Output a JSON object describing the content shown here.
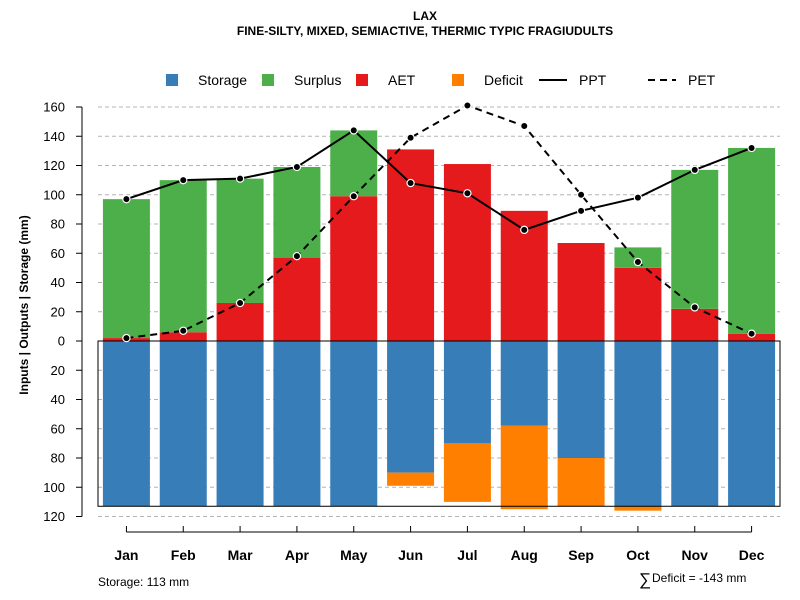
{
  "chart_data": {
    "type": "bar",
    "title": "LAX",
    "subtitle": "FINE-SILTY, MIXED, SEMIACTIVE, THERMIC TYPIC FRAGIUDULTS",
    "ylabel": "Inputs | Outputs | Storage    (mm)",
    "categories": [
      "Jan",
      "Feb",
      "Mar",
      "Apr",
      "May",
      "Jun",
      "Jul",
      "Aug",
      "Sep",
      "Oct",
      "Nov",
      "Dec"
    ],
    "ylim": [
      -120,
      160
    ],
    "yticks": [
      160,
      140,
      120,
      100,
      80,
      60,
      40,
      20,
      0,
      -20,
      -40,
      -60,
      -80,
      -100,
      -120
    ],
    "ytick_labels": [
      "160",
      "140",
      "120",
      "100",
      "80",
      "60",
      "40",
      "20",
      "0",
      "20",
      "40",
      "60",
      "80",
      "100",
      "120"
    ],
    "grid": true,
    "legend_position": "top",
    "colors": {
      "storage": "#377eb8",
      "surplus": "#4daf4a",
      "aet": "#e41a1c",
      "deficit": "#ff7f00",
      "ppt": "#000000",
      "pet": "#000000"
    },
    "legend": [
      {
        "key": "storage",
        "label": "Storage",
        "kind": "box"
      },
      {
        "key": "surplus",
        "label": "Surplus",
        "kind": "box"
      },
      {
        "key": "aet",
        "label": "AET",
        "kind": "box"
      },
      {
        "key": "deficit",
        "label": "Deficit",
        "kind": "box"
      },
      {
        "key": "ppt",
        "label": "PPT",
        "kind": "solid"
      },
      {
        "key": "pet",
        "label": "PET",
        "kind": "dashed"
      }
    ],
    "series": [
      {
        "name": "AET",
        "key": "aet",
        "values": [
          2,
          6,
          26,
          57,
          99,
          131,
          121,
          89,
          67,
          50,
          22,
          5
        ]
      },
      {
        "name": "Surplus",
        "key": "surplus",
        "values": [
          95,
          104,
          85,
          62,
          45,
          0,
          0,
          0,
          0,
          14,
          95,
          127
        ]
      },
      {
        "name": "Storage",
        "key": "storage",
        "values": [
          113,
          113,
          113,
          113,
          113,
          90,
          70,
          58,
          80,
          113,
          113,
          113
        ]
      },
      {
        "name": "Deficit",
        "key": "deficit",
        "values": [
          0,
          0,
          0,
          0,
          0,
          9,
          40,
          57,
          33,
          3,
          0,
          0
        ]
      },
      {
        "name": "PPT",
        "key": "ppt",
        "values": [
          97,
          110,
          111,
          119,
          144,
          108,
          101,
          76,
          89,
          98,
          117,
          132
        ]
      },
      {
        "name": "PET",
        "key": "pet",
        "values": [
          2,
          7,
          26,
          58,
          99,
          139,
          161,
          147,
          100,
          54,
          23,
          5
        ]
      }
    ],
    "storage_capacity": 113,
    "storage_note": "Storage: 113 mm",
    "deficit_note": "Deficit = -143 mm",
    "sum_symbol": "∑"
  }
}
